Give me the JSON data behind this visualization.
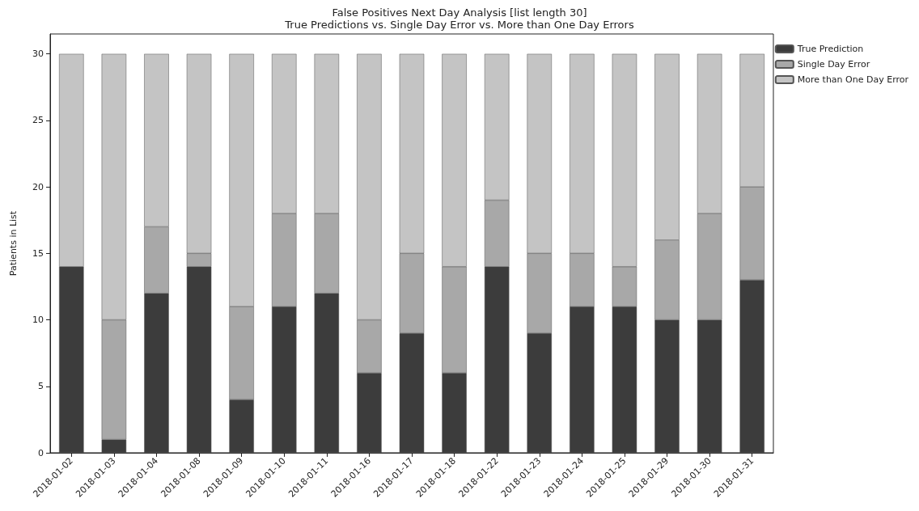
{
  "chart_data": {
    "type": "bar",
    "title": "False Positives Next Day Analysis [list length 30]",
    "subtitle": "True Predictions vs. Single Day Error vs. More than One Day Errors",
    "ylabel": "Patients in List",
    "categories": [
      "2018-01-02",
      "2018-01-03",
      "2018-01-04",
      "2018-01-08",
      "2018-01-09",
      "2018-01-10",
      "2018-01-11",
      "2018-01-16",
      "2018-01-17",
      "2018-01-18",
      "2018-01-22",
      "2018-01-23",
      "2018-01-24",
      "2018-01-25",
      "2018-01-29",
      "2018-01-30",
      "2018-01-31"
    ],
    "series": [
      {
        "name": "True Prediction",
        "color": "#3c3c3c",
        "values": [
          14,
          1,
          12,
          14,
          4,
          11,
          12,
          6,
          9,
          6,
          14,
          9,
          11,
          11,
          10,
          10,
          13
        ]
      },
      {
        "name": "Single Day Error",
        "color": "#a8a8a8",
        "values": [
          0,
          9,
          5,
          1,
          7,
          7,
          6,
          4,
          6,
          8,
          5,
          6,
          4,
          3,
          6,
          8,
          7
        ]
      },
      {
        "name": "More than One Day Error",
        "color": "#c4c4c4",
        "values": [
          16,
          20,
          13,
          15,
          19,
          12,
          12,
          20,
          15,
          16,
          11,
          15,
          15,
          16,
          14,
          12,
          10
        ]
      }
    ],
    "stacked": true,
    "ylim": [
      0,
      31.5
    ],
    "yticks": [
      0,
      5,
      10,
      15,
      20,
      25,
      30
    ],
    "grid": false,
    "legend": "top right"
  }
}
